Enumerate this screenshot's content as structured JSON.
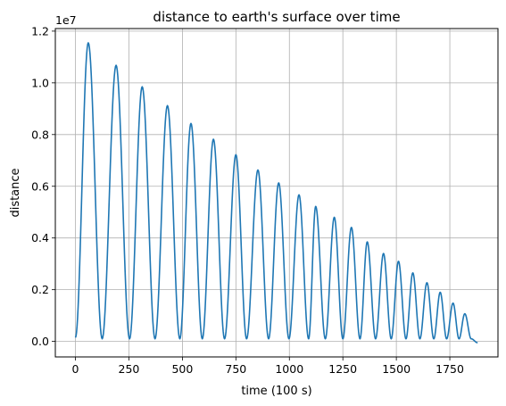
{
  "chart_data": {
    "type": "line",
    "title": "distance to earth's surface over time",
    "xlabel": "time (100 s)",
    "ylabel": "distance",
    "y_offset_text": "1e7",
    "y_multiplier": 10000000,
    "xlim": [
      -94,
      1975
    ],
    "ylim": [
      -0.06,
      1.21
    ],
    "xticks": [
      0,
      250,
      500,
      750,
      1000,
      1250,
      1500,
      1750
    ],
    "yticks": [
      0.0,
      0.2,
      0.4,
      0.6,
      0.8,
      1.0,
      1.2
    ],
    "ytick_labels": [
      "0.0",
      "0.2",
      "0.4",
      "0.6",
      "0.8",
      "1.0",
      "1.2"
    ],
    "grid": true,
    "line_color": "#1f77b4",
    "series": [
      {
        "x": [
          0,
          60,
          125,
          190,
          253,
          312,
          372,
          430,
          488,
          540,
          593,
          645,
          697,
          750,
          800,
          853,
          903,
          950,
          998,
          1045,
          1090,
          1123,
          1168,
          1210,
          1250,
          1290,
          1330,
          1364,
          1403,
          1440,
          1476,
          1510,
          1545,
          1577,
          1610,
          1643,
          1675,
          1705,
          1735,
          1765,
          1793,
          1820,
          1850,
          1880
        ],
        "y": [
          0.015,
          1.155,
          0.01,
          1.068,
          0.01,
          0.985,
          0.01,
          0.912,
          0.01,
          0.843,
          0.01,
          0.782,
          0.01,
          0.722,
          0.01,
          0.663,
          0.01,
          0.613,
          0.01,
          0.567,
          0.01,
          0.522,
          0.01,
          0.48,
          0.01,
          0.441,
          0.01,
          0.385,
          0.01,
          0.34,
          0.01,
          0.31,
          0.01,
          0.265,
          0.01,
          0.227,
          0.01,
          0.19,
          0.01,
          0.148,
          0.01,
          0.107,
          0.01,
          -0.005
        ]
      }
    ]
  }
}
